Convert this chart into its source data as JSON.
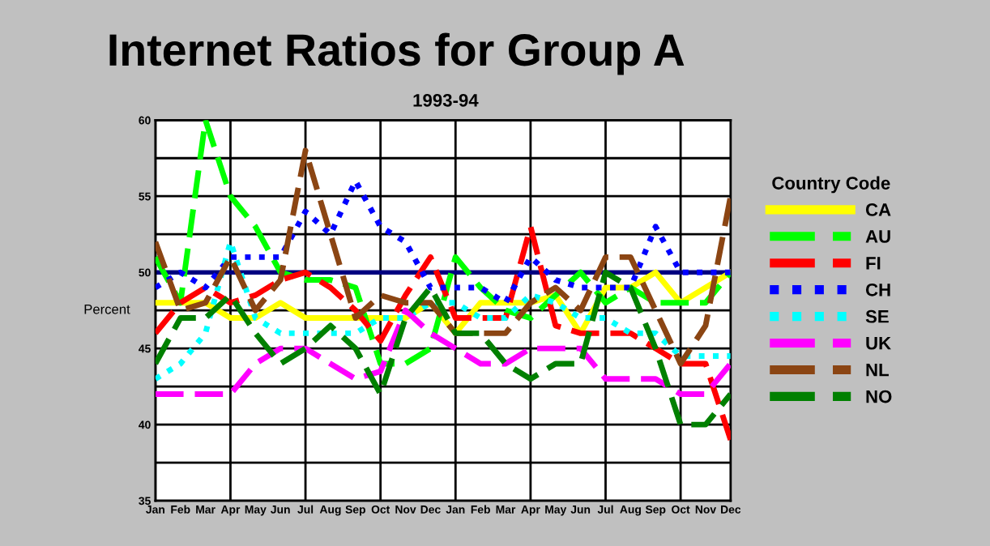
{
  "chart_data": {
    "type": "line",
    "title": "Internet Ratios for Group A",
    "subtitle": "1993-94",
    "ylabel": "Percent",
    "legend_title": "Country Code",
    "categories": [
      "Jan",
      "Feb",
      "Mar",
      "Apr",
      "May",
      "Jun",
      "Jul",
      "Aug",
      "Sep",
      "Oct",
      "Nov",
      "Dec",
      "Jan",
      "Feb",
      "Mar",
      "Apr",
      "May",
      "Jun",
      "Jul",
      "Aug",
      "Sep",
      "Oct",
      "Nov",
      "Dec"
    ],
    "series": [
      {
        "name": "CA",
        "color": "#ffff00",
        "line_style": "solid",
        "values": [
          48,
          48,
          48,
          47,
          47,
          48,
          47,
          47,
          47,
          47,
          47,
          48,
          46,
          48,
          48,
          48,
          48.5,
          46,
          49,
          49,
          50,
          48,
          49,
          50
        ]
      },
      {
        "name": "AU",
        "color": "#00ff00",
        "line_style": "dashed",
        "values": [
          51,
          48,
          60,
          55,
          53,
          50,
          49.5,
          49.5,
          49,
          44,
          44,
          45,
          51,
          49,
          47.5,
          47,
          48.5,
          50,
          48,
          49,
          48,
          48,
          48,
          50
        ]
      },
      {
        "name": "FI",
        "color": "#ff0000",
        "line_style": "dashed",
        "values": [
          46,
          48,
          49,
          48,
          48.5,
          49.5,
          50,
          49,
          47.5,
          45.5,
          48.5,
          51,
          47,
          47,
          47,
          53,
          46.5,
          46,
          46,
          46,
          45,
          44,
          44,
          39
        ]
      },
      {
        "name": "CH",
        "color": "#0000ff",
        "line_style": "dotted",
        "values": [
          49,
          50,
          49,
          51,
          51,
          51,
          54,
          52.5,
          56,
          53,
          52,
          49,
          49,
          49,
          48,
          51,
          49.5,
          49,
          49,
          49,
          53,
          50,
          50,
          50
        ]
      },
      {
        "name": "SE",
        "color": "#00ffff",
        "line_style": "dotted",
        "values": [
          43,
          44,
          46,
          52,
          47,
          46,
          46,
          46,
          46,
          47,
          47,
          48,
          48,
          47,
          47,
          48.5,
          48,
          47,
          47,
          46,
          46,
          44.5,
          44.5,
          44.5
        ]
      },
      {
        "name": "UK",
        "color": "#ff00ff",
        "line_style": "dashed",
        "values": [
          42,
          42,
          42,
          42,
          44,
          45,
          45,
          44,
          43,
          43.5,
          47.5,
          46,
          45,
          44,
          44,
          45,
          45,
          45,
          43,
          43,
          43,
          42,
          42,
          44
        ]
      },
      {
        "name": "NL",
        "color": "#8b4513",
        "line_style": "dashed",
        "values": [
          52,
          47.5,
          48,
          51,
          47.5,
          49.5,
          58,
          52.5,
          47,
          48.5,
          48,
          48,
          46,
          46,
          46,
          48,
          49,
          47.5,
          51,
          51,
          47.5,
          44,
          46.5,
          55
        ]
      },
      {
        "name": "NO",
        "color": "#008000",
        "line_style": "dashed",
        "values": [
          44,
          47,
          47,
          48.5,
          46,
          44,
          45,
          46.5,
          45,
          42,
          47,
          49,
          46,
          46,
          44,
          43,
          44,
          44,
          50,
          49,
          45,
          40,
          40,
          42
        ]
      }
    ],
    "ylim": [
      35,
      60
    ],
    "yticks": [
      35,
      {
        "value": 37.5,
        "label": null
      },
      40,
      {
        "value": 42.5,
        "label": null
      },
      45,
      {
        "value": 47.5,
        "label": null
      },
      50,
      {
        "value": 52.5,
        "label": null
      },
      55,
      {
        "value": 57.5,
        "label": null
      },
      60
    ],
    "ref_lines": [
      {
        "axis": "y",
        "value": 50,
        "color": "#000080",
        "line_style": "solid"
      }
    ],
    "grid": true,
    "legend": "right",
    "marker": "none"
  }
}
